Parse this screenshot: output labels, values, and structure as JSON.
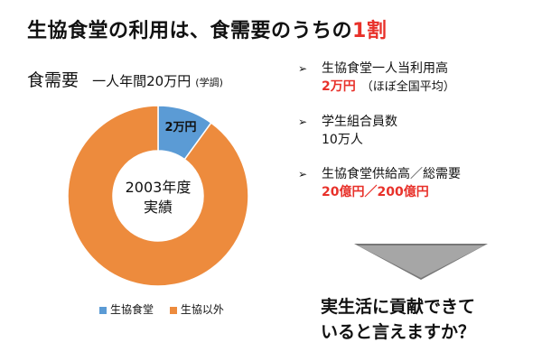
{
  "title": {
    "text": "生協食堂の利用は、食需要のうちの",
    "accent": "1割",
    "accent_color": "#e8312a"
  },
  "subtitle": {
    "label": "食需要",
    "detail": "一人年間20万円",
    "source": "(学調)"
  },
  "chart_data": {
    "type": "pie",
    "donut": true,
    "center_label": [
      "2003年度",
      "実績"
    ],
    "categories": [
      "生協食堂",
      "生協以外"
    ],
    "values": [
      2,
      18
    ],
    "unit": "万円",
    "data_labels": [
      "2万円",
      ""
    ],
    "colors": [
      "#5b9bd5",
      "#ed8b3d"
    ],
    "legend": "bottom"
  },
  "legend": {
    "items": [
      {
        "label": "生協食堂",
        "color": "#5b9bd5"
      },
      {
        "label": "生協以外",
        "color": "#ed8b3d"
      }
    ]
  },
  "bullets": [
    {
      "arrow": "➢",
      "line1": "生協食堂一人当利用高",
      "line2_red": "2万円",
      "line2_note": "（ほぼ全国平均）"
    },
    {
      "arrow": "➢",
      "line1": "学生組合員数",
      "line2_plain": "10万人"
    },
    {
      "arrow": "➢",
      "line1": "生協食堂供給高／総需要",
      "line2_red": "20億円／200億円"
    }
  ],
  "question": {
    "line1": "実生活に貢献できて",
    "line2": "いると言えますか？"
  }
}
